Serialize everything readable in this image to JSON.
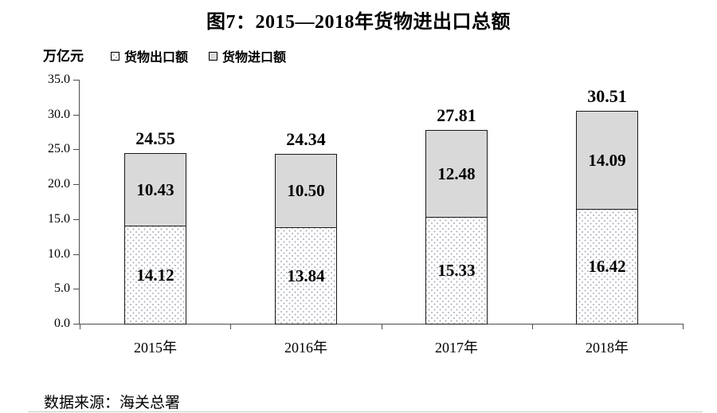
{
  "title": "图7：2015—2018年货物进出口总额",
  "unit_label": "万亿元",
  "legend": [
    {
      "label": "货物出口额",
      "swatch": "dotted-white"
    },
    {
      "label": "货物进口额",
      "swatch": "gray"
    }
  ],
  "source_note": "数据来源：海关总署",
  "colors": {
    "import_fill": "#d9d9d9",
    "export_fill": "#ffffff",
    "export_dot": "#a9aeb9",
    "bar_border": "#1a1a1a",
    "axis": "#4d4d4d",
    "text": "#000000"
  },
  "chart_data": {
    "type": "bar",
    "stacked": true,
    "title": "图7：2015—2018年货物进出口总额",
    "categories": [
      "2015年",
      "2016年",
      "2017年",
      "2018年"
    ],
    "series": [
      {
        "name": "货物出口额",
        "values": [
          14.12,
          13.84,
          15.33,
          16.42
        ],
        "style": "white-dotted"
      },
      {
        "name": "货物进口额",
        "values": [
          10.43,
          10.5,
          12.48,
          14.09
        ],
        "style": "light-gray"
      }
    ],
    "totals": [
      "24.55",
      "24.34",
      "27.81",
      "30.51"
    ],
    "segment_labels": [
      [
        "14.12",
        "13.84",
        "15.33",
        "16.42"
      ],
      [
        "10.43",
        "10.50",
        "12.48",
        "14.09"
      ]
    ],
    "xlabel": "",
    "ylabel": "万亿元",
    "ylim": [
      0,
      35
    ],
    "yticks": [
      "0.0",
      "5.0",
      "10.0",
      "15.0",
      "20.0",
      "25.0",
      "30.0",
      "35.0"
    ],
    "grid": false,
    "legend_position": "top-left",
    "value_labels": "inside-and-total-above"
  }
}
